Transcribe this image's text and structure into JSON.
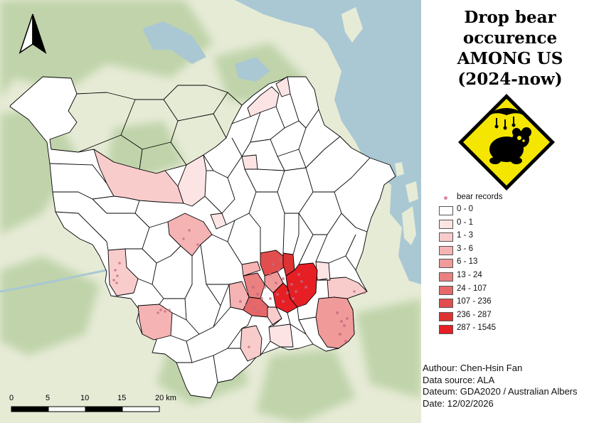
{
  "title": {
    "line1": "Drop bear",
    "line2": "occurence",
    "line3": "AMONG US",
    "line4": "(2024-now)"
  },
  "legend": {
    "point_label": "bear records",
    "classes": [
      {
        "label": "0 - 0",
        "color": "#ffffff"
      },
      {
        "label": "0 - 1",
        "color": "#fde4e4"
      },
      {
        "label": "1 - 3",
        "color": "#f9cccc"
      },
      {
        "label": "3 - 6",
        "color": "#f5b3b3"
      },
      {
        "label": "6 - 13",
        "color": "#f09a9a"
      },
      {
        "label": "13 - 24",
        "color": "#ea8080"
      },
      {
        "label": "24 - 107",
        "color": "#e66868"
      },
      {
        "label": "107 - 236",
        "color": "#e24d4d"
      },
      {
        "label": "236 - 287",
        "color": "#dd3333"
      },
      {
        "label": "287 - 1545",
        "color": "#e61f25"
      }
    ]
  },
  "scale_bar": {
    "ticks": [
      "0",
      "5",
      "10",
      "15",
      "20 km"
    ]
  },
  "meta": {
    "author": "Authour: Chen-Hsin Fan",
    "source": "Data source: ALA",
    "datum": "Dateum: GDA2020 / Australian Albers",
    "date": "Date: 12/02/2026"
  },
  "colors": {
    "water": "#aac8d3",
    "land": "#e8ecd9",
    "forest": "#b8cfa2",
    "boundary": "#000000",
    "record_point": "#c46a80"
  },
  "icons": {
    "north_arrow": "north-arrow-icon",
    "warning_sign": "drop-bear-warning-sign-icon"
  }
}
